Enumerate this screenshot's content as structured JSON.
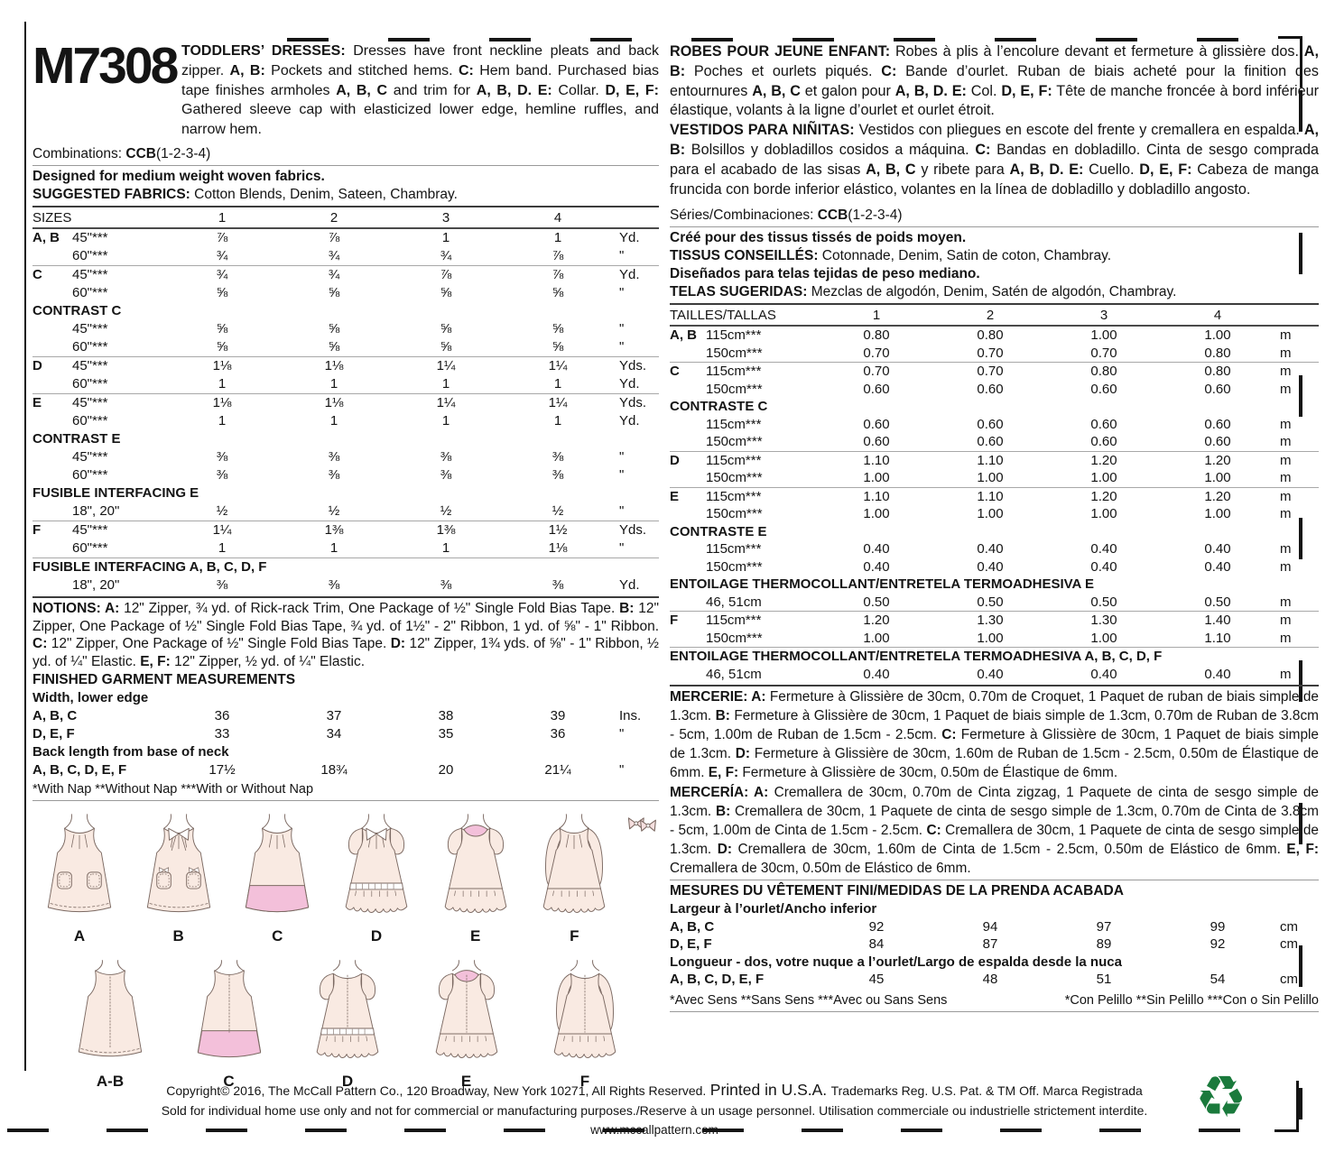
{
  "pattern": {
    "number": "M7308"
  },
  "descriptions": {
    "en": [
      [
        "b",
        "TODDLERS’ DRESSES:"
      ],
      [
        "t",
        " Dresses have front neckline pleats and back zipper. "
      ],
      [
        "b",
        "A, B:"
      ],
      [
        "t",
        " Pockets and stitched hems. "
      ],
      [
        "b",
        "C:"
      ],
      [
        "t",
        " Hem band. Purchased bias tape finishes armholes "
      ],
      [
        "b",
        "A, B, C"
      ],
      [
        "t",
        " and trim for "
      ],
      [
        "b",
        "A, B, D. E:"
      ],
      [
        "t",
        " Collar. "
      ],
      [
        "b",
        "D, E, F:"
      ],
      [
        "t",
        " Gathered sleeve cap with elasticized lower edge, hemline ruffles, and narrow hem."
      ]
    ],
    "fr": [
      [
        "b",
        "ROBES POUR JEUNE ENFANT:"
      ],
      [
        "t",
        " Robes à plis à l’encolure devant et fermeture à glissière dos. "
      ],
      [
        "b",
        "A, B:"
      ],
      [
        "t",
        " Poches et ourlets piqués. "
      ],
      [
        "b",
        "C:"
      ],
      [
        "t",
        " Bande d’ourlet. Ruban de biais acheté pour la finition des entournures "
      ],
      [
        "b",
        "A, B, C"
      ],
      [
        "t",
        " et galon pour "
      ],
      [
        "b",
        "A, B, D. E:"
      ],
      [
        "t",
        " Col. "
      ],
      [
        "b",
        "D, E, F:"
      ],
      [
        "t",
        " Tête de manche froncée à bord inférieur élastique, volants à la ligne d’ourlet et ourlet étroit."
      ]
    ],
    "es": [
      [
        "b",
        "VESTIDOS PARA NIÑITAS:"
      ],
      [
        "t",
        " Vestidos con pliegues en escote del frente y cremallera en espalda. "
      ],
      [
        "b",
        "A, B:"
      ],
      [
        "t",
        " Bolsillos y dobladillos cosidos a máquina. "
      ],
      [
        "b",
        "C:"
      ],
      [
        "t",
        " Bandas en dobladillo. Cinta de sesgo comprada para el acabado de las sisas "
      ],
      [
        "b",
        "A, B, C"
      ],
      [
        "t",
        " y ribete para "
      ],
      [
        "b",
        "A, B, D. E:"
      ],
      [
        "t",
        " Cuello. "
      ],
      [
        "b",
        "D, E, F:"
      ],
      [
        "t",
        " Cabeza de manga fruncida con borde inferior elástico, volantes en la línea de dobladillo y dobladillo angosto."
      ]
    ]
  },
  "meta": {
    "combinations": [
      [
        "t",
        "Combinations: "
      ],
      [
        "b",
        "CCB"
      ],
      [
        "t",
        "(1-2-3-4)"
      ]
    ],
    "designed_en": "Designed for medium weight woven fabrics.",
    "suggested_en": [
      [
        "b",
        "SUGGESTED FABRICS:"
      ],
      [
        "t",
        " Cotton Blends, Denim, Sateen, Chambray."
      ]
    ],
    "series": [
      [
        "t",
        "Séries/Combinaciones: "
      ],
      [
        "b",
        "CCB"
      ],
      [
        "t",
        "(1-2-3-4)"
      ]
    ],
    "cree_fr": "Créé pour des tissus tissés de poids moyen.",
    "tissus_fr": [
      [
        "b",
        "TISSUS CONSEILLÉS:"
      ],
      [
        "t",
        " Cotonnade, Denim, Satin de coton, Chambray."
      ]
    ],
    "disenados_es": "Diseñados para telas tejidas de peso mediano.",
    "telas_es": [
      [
        "b",
        "TELAS SUGERIDAS:"
      ],
      [
        "t",
        " Mezclas de algodón, Denim, Satén de algodón, Chambray."
      ]
    ]
  },
  "yardage_en": {
    "header_label": "SIZES",
    "size_cols": [
      "1",
      "2",
      "3",
      "4"
    ],
    "rows": [
      {
        "l": "A, B",
        "w": "45\"***",
        "v": [
          "⅞",
          "⅞",
          "1",
          "1"
        ],
        "u": "Yd."
      },
      {
        "w": "60\"***",
        "v": [
          "¾",
          "¾",
          "¾",
          "⅞"
        ],
        "u": "\""
      },
      {
        "l": "C",
        "w": "45\"***",
        "v": [
          "¾",
          "¾",
          "⅞",
          "⅞"
        ],
        "u": "Yd.",
        "r": 1
      },
      {
        "w": "60\"***",
        "v": [
          "⅝",
          "⅝",
          "⅝",
          "⅝"
        ],
        "u": "\""
      },
      {
        "s": "CONTRAST C"
      },
      {
        "w": "45\"***",
        "v": [
          "⅝",
          "⅝",
          "⅝",
          "⅝"
        ],
        "u": "\""
      },
      {
        "w": "60\"***",
        "v": [
          "⅝",
          "⅝",
          "⅝",
          "⅝"
        ],
        "u": "\""
      },
      {
        "l": "D",
        "w": "45\"***",
        "v": [
          "1⅛",
          "1⅛",
          "1¼",
          "1¼"
        ],
        "u": "Yds.",
        "r": 1
      },
      {
        "w": "60\"***",
        "v": [
          "1",
          "1",
          "1",
          "1"
        ],
        "u": "Yd."
      },
      {
        "l": "E",
        "w": "45\"***",
        "v": [
          "1⅛",
          "1⅛",
          "1¼",
          "1¼"
        ],
        "u": "Yds.",
        "r": 1
      },
      {
        "w": "60\"***",
        "v": [
          "1",
          "1",
          "1",
          "1"
        ],
        "u": "Yd."
      },
      {
        "s": "CONTRAST E"
      },
      {
        "w": "45\"***",
        "v": [
          "⅜",
          "⅜",
          "⅜",
          "⅜"
        ],
        "u": "\""
      },
      {
        "w": "60\"***",
        "v": [
          "⅜",
          "⅜",
          "⅜",
          "⅜"
        ],
        "u": "\""
      },
      {
        "s": "FUSIBLE INTERFACING E"
      },
      {
        "w": "18\", 20\"",
        "v": [
          "½",
          "½",
          "½",
          "½"
        ],
        "u": "\""
      },
      {
        "l": "F",
        "w": "45\"***",
        "v": [
          "1¼",
          "1⅜",
          "1⅜",
          "1½"
        ],
        "u": "Yds.",
        "r": 1
      },
      {
        "w": "60\"***",
        "v": [
          "1",
          "1",
          "1",
          "1⅛"
        ],
        "u": "\""
      },
      {
        "s": "FUSIBLE INTERFACING A, B, C, D, F",
        "r": 1
      },
      {
        "w": "18\", 20\"",
        "v": [
          "⅜",
          "⅜",
          "⅜",
          "⅜"
        ],
        "u": "Yd."
      }
    ]
  },
  "yardage_metric": {
    "header_label": "TAILLES/TALLAS",
    "size_cols": [
      "1",
      "2",
      "3",
      "4"
    ],
    "rows": [
      {
        "l": "A, B",
        "w": "115cm***",
        "v": [
          "0.80",
          "0.80",
          "1.00",
          "1.00"
        ],
        "u": "m"
      },
      {
        "w": "150cm***",
        "v": [
          "0.70",
          "0.70",
          "0.70",
          "0.80"
        ],
        "u": "m"
      },
      {
        "l": "C",
        "w": "115cm***",
        "v": [
          "0.70",
          "0.70",
          "0.80",
          "0.80"
        ],
        "u": "m",
        "r": 1
      },
      {
        "w": "150cm***",
        "v": [
          "0.60",
          "0.60",
          "0.60",
          "0.60"
        ],
        "u": "m"
      },
      {
        "s": "CONTRASTE C"
      },
      {
        "w": "115cm***",
        "v": [
          "0.60",
          "0.60",
          "0.60",
          "0.60"
        ],
        "u": "m"
      },
      {
        "w": "150cm***",
        "v": [
          "0.60",
          "0.60",
          "0.60",
          "0.60"
        ],
        "u": "m"
      },
      {
        "l": "D",
        "w": "115cm***",
        "v": [
          "1.10",
          "1.10",
          "1.20",
          "1.20"
        ],
        "u": "m",
        "r": 1
      },
      {
        "w": "150cm***",
        "v": [
          "1.00",
          "1.00",
          "1.00",
          "1.00"
        ],
        "u": "m"
      },
      {
        "l": "E",
        "w": "115cm***",
        "v": [
          "1.10",
          "1.10",
          "1.20",
          "1.20"
        ],
        "u": "m",
        "r": 1
      },
      {
        "w": "150cm***",
        "v": [
          "1.00",
          "1.00",
          "1.00",
          "1.00"
        ],
        "u": "m"
      },
      {
        "s": "CONTRASTE E"
      },
      {
        "w": "115cm***",
        "v": [
          "0.40",
          "0.40",
          "0.40",
          "0.40"
        ],
        "u": "m"
      },
      {
        "w": "150cm***",
        "v": [
          "0.40",
          "0.40",
          "0.40",
          "0.40"
        ],
        "u": "m"
      },
      {
        "s": "ENTOILAGE THERMOCOLLANT/ENTRETELA TERMOADHESIVA E"
      },
      {
        "w": "46, 51cm",
        "v": [
          "0.50",
          "0.50",
          "0.50",
          "0.50"
        ],
        "u": "m"
      },
      {
        "l": "F",
        "w": "115cm***",
        "v": [
          "1.20",
          "1.30",
          "1.30",
          "1.40"
        ],
        "u": "m",
        "r": 1
      },
      {
        "w": "150cm***",
        "v": [
          "1.00",
          "1.00",
          "1.00",
          "1.10"
        ],
        "u": "m"
      },
      {
        "s": "ENTOILAGE THERMOCOLLANT/ENTRETELA TERMOADHESIVA A, B, C, D, F",
        "r": 1
      },
      {
        "w": "46, 51cm",
        "v": [
          "0.40",
          "0.40",
          "0.40",
          "0.40"
        ],
        "u": "m"
      }
    ]
  },
  "notions": [
    [
      "b",
      "NOTIONS: A:"
    ],
    [
      "t",
      " 12\" Zipper, ¾ yd. of Rick-rack Trim, One Package of ½\" Single Fold Bias Tape. "
    ],
    [
      "b",
      "B:"
    ],
    [
      "t",
      " 12\" Zipper, One Package of ½\" Single Fold Bias Tape, ¾ yd. of 1½\" - 2\" Ribbon, 1 yd. of ⅝\" - 1\" Ribbon. "
    ],
    [
      "b",
      "C:"
    ],
    [
      "t",
      " 12\" Zipper, One Package of ½\" Single Fold Bias Tape. "
    ],
    [
      "b",
      "D:"
    ],
    [
      "t",
      " 12\" Zipper, 1¾ yds. of ⅝\" - 1\" Ribbon, ½ yd. of ¼\" Elastic. "
    ],
    [
      "b",
      "E, F:"
    ],
    [
      "t",
      " 12\" Zipper, ½ yd. of ¼\" Elastic."
    ]
  ],
  "mercerie": [
    [
      "b",
      "MERCERIE: A:"
    ],
    [
      "t",
      " Fermeture à Glissière de 30cm, 0.70m de Croquet, 1 Paquet de ruban de biais simple de 1.3cm. "
    ],
    [
      "b",
      "B:"
    ],
    [
      "t",
      " Fermeture à Glissière de 30cm, 1 Paquet de biais simple de 1.3cm, 0.70m de Ruban de 3.8cm - 5cm, 1.00m de Ruban de 1.5cm - 2.5cm. "
    ],
    [
      "b",
      "C:"
    ],
    [
      "t",
      " Fermeture à Glissière de 30cm, 1 Paquet de biais simple de 1.3cm. "
    ],
    [
      "b",
      "D:"
    ],
    [
      "t",
      " Fermeture à Glissière de 30cm, 1.60m de Ruban de 1.5cm - 2.5cm, 0.50m de Élastique de 6mm. "
    ],
    [
      "b",
      "E, F:"
    ],
    [
      "t",
      " Fermeture à Glissière de 30cm, 0.50m de Élastique de 6mm."
    ]
  ],
  "merceria": [
    [
      "b",
      "MERCERÍA: A:"
    ],
    [
      "t",
      " Cremallera de 30cm, 0.70m de Cinta zigzag, 1 Paquete de cinta de sesgo simple de 1.3cm. "
    ],
    [
      "b",
      "B:"
    ],
    [
      "t",
      " Cremallera de 30cm, 1 Paquete de cinta de sesgo simple de 1.3cm, 0.70m de Cinta de 3.8cm - 5cm, 1.00m de Cinta de 1.5cm - 2.5cm. "
    ],
    [
      "b",
      "C:"
    ],
    [
      "t",
      " Cremallera de 30cm, 1 Paquete de cinta de sesgo simple de 1.3cm. "
    ],
    [
      "b",
      "D:"
    ],
    [
      "t",
      " Cremallera de 30cm, 1.60m de Cinta de 1.5cm - 2.5cm, 0.50m de Elástico de 6mm. "
    ],
    [
      "b",
      "E, F:"
    ],
    [
      "t",
      " Cremallera de 30cm, 0.50m de Elástico de 6mm."
    ]
  ],
  "measurements_en": {
    "title": "FINISHED GARMENT MEASUREMENTS",
    "rows": [
      {
        "s": "Width, lower edge"
      },
      {
        "m": "A, B, C",
        "v": [
          "36",
          "37",
          "38",
          "39"
        ],
        "u": "Ins."
      },
      {
        "m": "D, E, F",
        "v": [
          "33",
          "34",
          "35",
          "36"
        ],
        "u": "\""
      },
      {
        "s": "Back length from base of neck"
      },
      {
        "m": "A, B, C, D, E, F",
        "v": [
          "17½",
          "18¾",
          "20",
          "21¼"
        ],
        "u": "\""
      }
    ]
  },
  "measurements_metric": {
    "title": "MESURES DU VÊTEMENT FINI/MEDIDAS DE LA PRENDA ACABADA",
    "rows": [
      {
        "s": "Largeur à l’ourlet/Ancho inferior"
      },
      {
        "m": "A, B, C",
        "v": [
          "92",
          "94",
          "97",
          "99"
        ],
        "u": "cm"
      },
      {
        "m": "D, E, F",
        "v": [
          "84",
          "87",
          "89",
          "92"
        ],
        "u": "cm"
      },
      {
        "s": "Longueur - dos, votre nuque a l’ourlet/Largo de espalda desde la nuca"
      },
      {
        "m": "A, B, C, D, E, F",
        "v": [
          "45",
          "48",
          "51",
          "54"
        ],
        "u": "cm"
      }
    ]
  },
  "footnotes": {
    "en": "*With Nap **Without Nap ***With or Without Nap",
    "fr": "*Avec Sens **Sans Sens ***Avec ou Sans Sens",
    "es": "*Con Pelillo **Sin Pelillo ***Con o Sin Pelillo"
  },
  "illustrations": {
    "front": [
      {
        "label": "A",
        "variant": "front-a"
      },
      {
        "label": "B",
        "variant": "front-b"
      },
      {
        "label": "C",
        "variant": "front-c"
      },
      {
        "label": "D",
        "variant": "front-d"
      },
      {
        "label": "E",
        "variant": "front-e"
      },
      {
        "label": "F",
        "variant": "front-f"
      }
    ],
    "back": [
      {
        "label": "A-B",
        "variant": "back-ab"
      },
      {
        "label": "C",
        "variant": "back-c"
      },
      {
        "label": "D",
        "variant": "back-d"
      },
      {
        "label": "E",
        "variant": "back-e"
      },
      {
        "label": "F",
        "variant": "back-f"
      }
    ]
  },
  "footer": {
    "copyright": "Copyright© 2016,  The McCall Pattern Co., 120 Broadway, New York 10271, All Rights Reserved.",
    "printed": "Printed in U.S.A.",
    "trademark": "Trademarks Reg. U.S. Pat. & TM Off. Marca Registrada",
    "usage": "Sold for individual home use only and not for commercial or manufacturing purposes./Reserve à un usage personnel. Utilisation commerciale ou industrielle strictement interdite.",
    "website": "www.mccallpattern.com",
    "recycle_symbol": "♻"
  },
  "colors": {
    "recycle_green": "#1a7a3c",
    "dress_fill": "#f9eae2",
    "dress_pink": "#f3c0da",
    "dress_stroke": "#7c6a63"
  }
}
